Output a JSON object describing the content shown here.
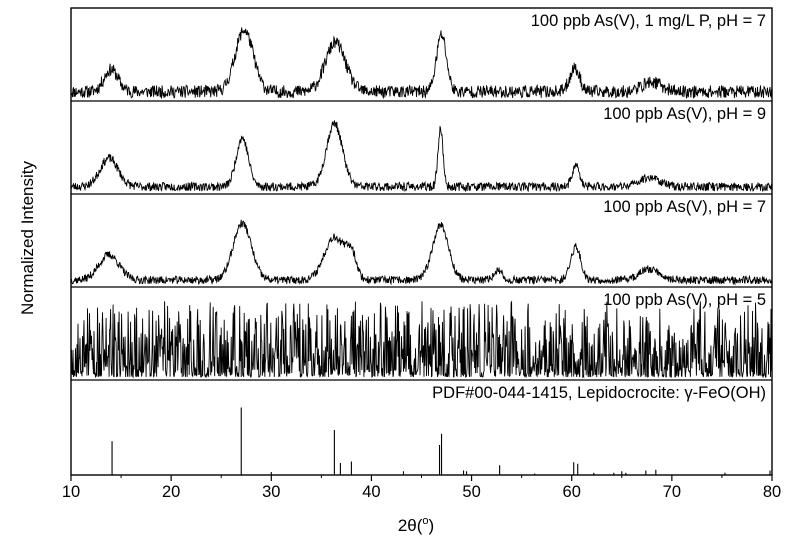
{
  "chart_data": {
    "type": "line",
    "xlabel_base": "2θ(",
    "xlabel_sup": "o",
    "xlabel_end": ")",
    "ylabel": "Normalized Intensity",
    "xlim": [
      10,
      80
    ],
    "x_ticks": [
      "10",
      "20",
      "30",
      "40",
      "50",
      "60",
      "70",
      "80"
    ],
    "panels": [
      {
        "label": "100 ppb As(V), 1 mg/L P, pH = 7",
        "peaks": [
          [
            14,
            0.28,
            0.7
          ],
          [
            27.3,
            0.78,
            0.9
          ],
          [
            36.4,
            0.62,
            1.0
          ],
          [
            47.0,
            0.72,
            0.5
          ],
          [
            60.3,
            0.3,
            0.5
          ],
          [
            68,
            0.12,
            1.0
          ]
        ],
        "noise": 0.16,
        "seed": 11
      },
      {
        "label": "100 ppb As(V), pH = 9",
        "peaks": [
          [
            13.8,
            0.36,
            0.9
          ],
          [
            27.1,
            0.62,
            0.6
          ],
          [
            36.3,
            0.8,
            0.8
          ],
          [
            46.9,
            0.74,
            0.25
          ],
          [
            60.4,
            0.28,
            0.35
          ],
          [
            67.8,
            0.12,
            1.0
          ]
        ],
        "noise": 0.11,
        "seed": 23
      },
      {
        "label": "100 ppb As(V), pH = 7",
        "peaks": [
          [
            13.8,
            0.32,
            1.0
          ],
          [
            27.1,
            0.72,
            0.9
          ],
          [
            36.3,
            0.55,
            1.0
          ],
          [
            38.0,
            0.3,
            0.5
          ],
          [
            46.9,
            0.7,
            0.8
          ],
          [
            52.6,
            0.12,
            0.4
          ],
          [
            60.4,
            0.42,
            0.5
          ],
          [
            67.8,
            0.14,
            1.0
          ]
        ],
        "noise": 0.1,
        "seed": 37
      },
      {
        "label": "100 ppb As(V), pH = 5",
        "peaks": [],
        "noise": 0.6,
        "seed": 53
      }
    ],
    "reference": {
      "label_base": "PDF#00-044-1415, Lepidocrocite: ",
      "label_gamma": "γ",
      "label_end": "-FeO(OH)",
      "lines": [
        [
          14.1,
          0.45
        ],
        [
          27.0,
          0.9
        ],
        [
          30.0,
          0.04
        ],
        [
          36.3,
          0.6
        ],
        [
          36.9,
          0.16
        ],
        [
          38.0,
          0.18
        ],
        [
          43.2,
          0.05
        ],
        [
          46.8,
          0.4
        ],
        [
          47.0,
          0.55
        ],
        [
          49.2,
          0.06
        ],
        [
          49.5,
          0.05
        ],
        [
          52.8,
          0.13
        ],
        [
          56.3,
          0.02
        ],
        [
          60.2,
          0.17
        ],
        [
          60.6,
          0.15
        ],
        [
          62.2,
          0.03
        ],
        [
          64.2,
          0.03
        ],
        [
          65.0,
          0.05
        ],
        [
          65.4,
          0.03
        ],
        [
          67.4,
          0.06
        ],
        [
          68.4,
          0.07
        ],
        [
          75.3,
          0.03
        ],
        [
          79.8,
          0.06
        ]
      ]
    }
  }
}
